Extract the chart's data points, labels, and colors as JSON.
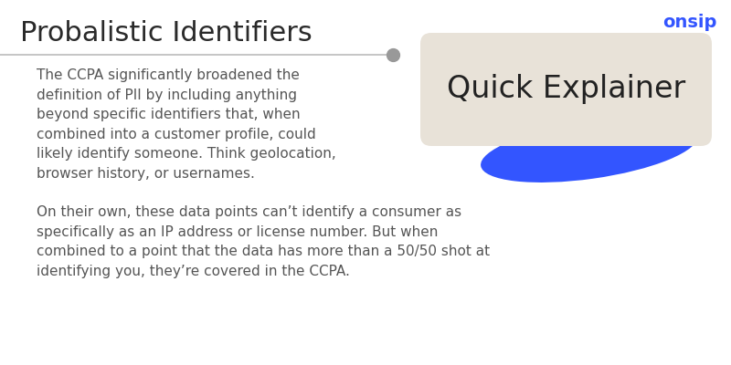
{
  "title": "Probalistic Identifiers",
  "title_fontsize": 22,
  "title_color": "#2a2a2a",
  "brand_text": "onsip",
  "brand_color": "#3355ff",
  "brand_fontsize": 14,
  "line_color": "#bbbbbb",
  "line_dot_color": "#999999",
  "para1": "The CCPA significantly broadened the\ndefinition of PII by including anything\nbeyond specific identifiers that, when\ncombined into a customer profile, could\nlikely identify someone. Think geolocation,\nbrowser history, or usernames.",
  "para2": "On their own, these data points can’t identify a consumer as\nspecifically as an IP address or license number. But when\ncombined to a point that the data has more than a 50/50 shot at\nidentifying you, they’re covered in the CCPA.",
  "para_fontsize": 11,
  "para_color": "#555555",
  "quick_explainer_text": "Quick Explainer",
  "quick_explainer_fontsize": 24,
  "quick_explainer_color": "#222222",
  "box_color": "#e8e2d8",
  "blob_color": "#3355ff",
  "background_color": "#ffffff"
}
